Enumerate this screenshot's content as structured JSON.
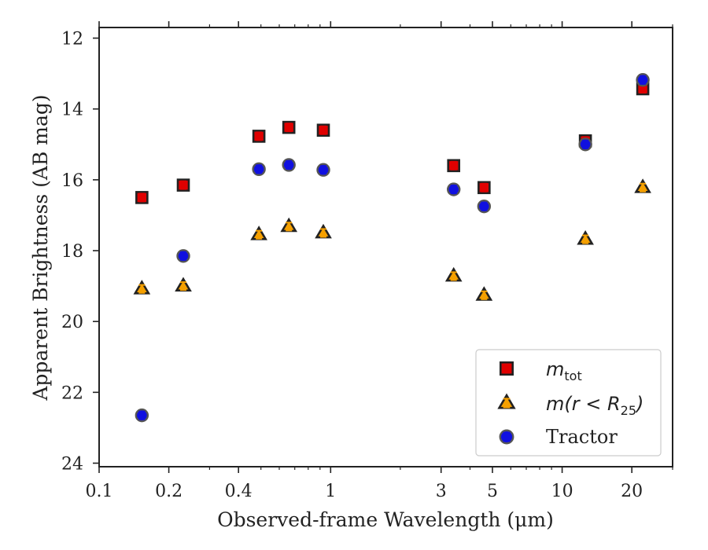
{
  "chart_data": {
    "type": "scatter",
    "xlabel": "Observed-frame Wavelength (μm)",
    "ylabel": "Apparent Brightness (AB mag)",
    "xscale": "log",
    "xlim": [
      0.1,
      30
    ],
    "ylim": [
      24.1,
      11.7
    ],
    "y_inverted": true,
    "xticks": [
      {
        "value": 0.1,
        "label": "0.1"
      },
      {
        "value": 0.2,
        "label": "0.2"
      },
      {
        "value": 0.4,
        "label": "0.4"
      },
      {
        "value": 1,
        "label": "1"
      },
      {
        "value": 3,
        "label": "3"
      },
      {
        "value": 5,
        "label": "5"
      },
      {
        "value": 10,
        "label": "10"
      },
      {
        "value": 20,
        "label": "20"
      }
    ],
    "yticks": [
      {
        "value": 12,
        "label": "12"
      },
      {
        "value": 14,
        "label": "14"
      },
      {
        "value": 16,
        "label": "16"
      },
      {
        "value": 18,
        "label": "18"
      },
      {
        "value": 20,
        "label": "20"
      },
      {
        "value": 22,
        "label": "22"
      },
      {
        "value": 24,
        "label": "24"
      }
    ],
    "grid": false,
    "legend_position": "bottom-right",
    "series": [
      {
        "name": "m_tot",
        "legend_label": {
          "main": "m",
          "sub": "tot"
        },
        "marker": "square",
        "fill_color": "#e00000",
        "error_color": "#e00000",
        "x": [
          0.153,
          0.231,
          0.49,
          0.66,
          0.93,
          3.4,
          4.6,
          12.6,
          22.3
        ],
        "y": [
          16.5,
          16.15,
          14.77,
          14.52,
          14.6,
          15.6,
          16.22,
          14.9,
          13.43
        ]
      },
      {
        "name": "m(r < R_25)",
        "legend_label": {
          "main": "m(r < R",
          "sub": "25",
          "tail": ")"
        },
        "marker": "triangle",
        "fill_color": "#f5a000",
        "error_color": "#f5a000",
        "x": [
          0.153,
          0.231,
          0.49,
          0.66,
          0.93,
          3.4,
          4.6,
          12.6,
          22.3
        ],
        "y": [
          19.08,
          19.0,
          17.55,
          17.32,
          17.5,
          18.72,
          19.26,
          17.68,
          16.22
        ]
      },
      {
        "name": "Tractor",
        "legend_label": {
          "main": "Tractor"
        },
        "marker": "circle",
        "fill_color": "#1010e0",
        "error_color": "#1010e0",
        "x": [
          0.153,
          0.231,
          0.49,
          0.66,
          0.93,
          3.4,
          4.6,
          12.6,
          22.3
        ],
        "y": [
          22.65,
          18.15,
          15.7,
          15.58,
          15.72,
          16.27,
          16.75,
          15.0,
          13.18
        ]
      }
    ]
  }
}
